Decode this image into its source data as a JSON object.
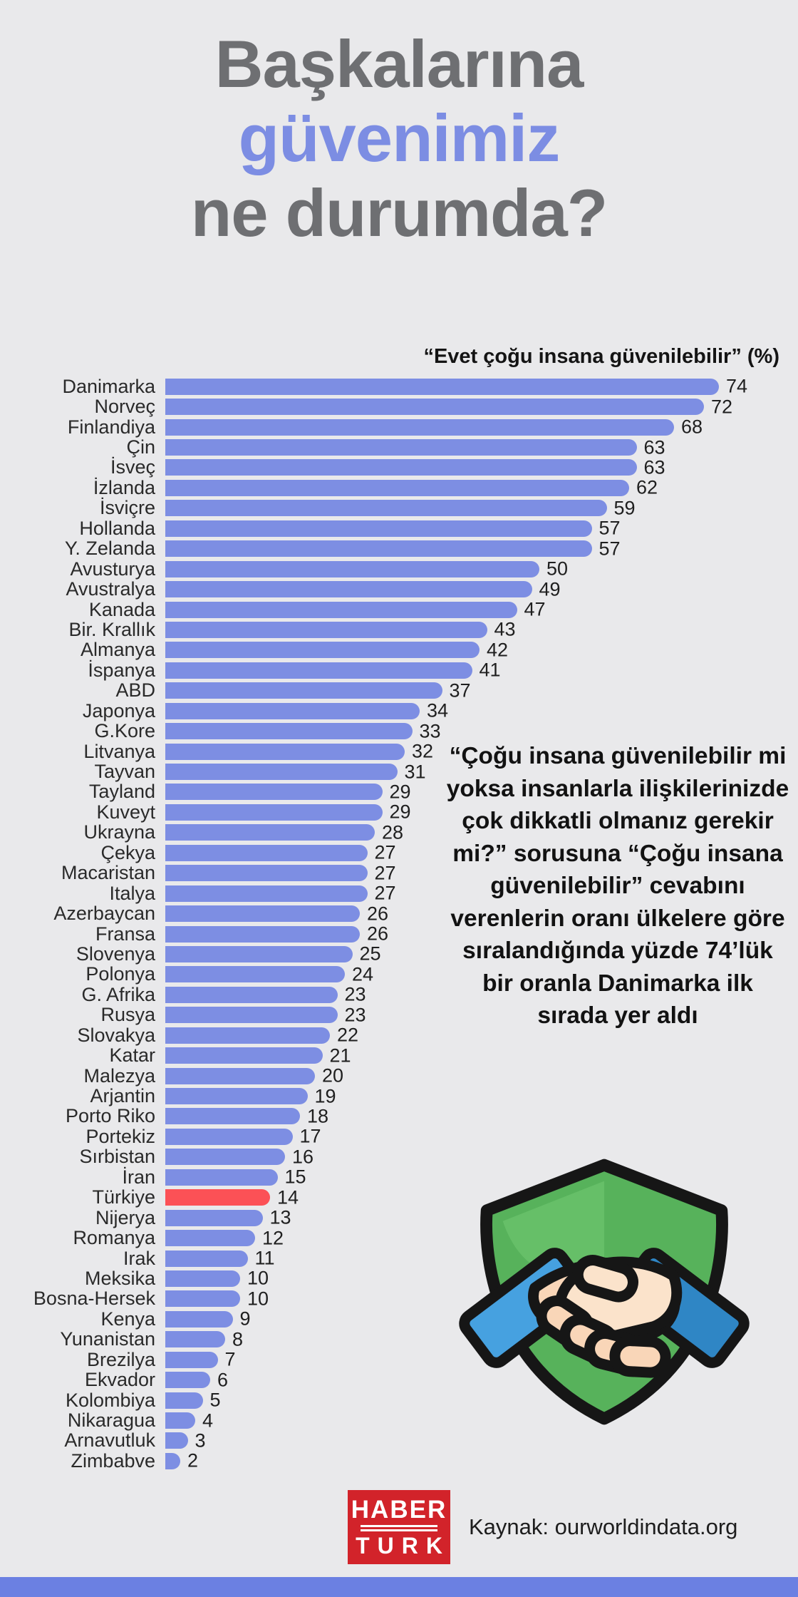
{
  "page": {
    "title_line1": "Başkalarına",
    "title_line2": "güvenimiz",
    "title_line3": "ne durumda?",
    "side_text": "“Çoğu insana güvenilebilir mi yoksa insanlarla ilişkilerinizde çok dikkatli olmanız gerekir mi?” sorusuna “Çoğu insana güvenilebilir” cevabını verenlerin oranı ülkelere göre sıralandığında yüzde 74’lük bir oranla Danimarka ilk sırada yer aldı",
    "source": "Kaynak: ourworldindata.org",
    "logo_line1": "HABER",
    "logo_line2": "TURK",
    "icon": "handshake-shield-icon",
    "colors": {
      "background": "#e9e9eb",
      "title_gray": "#6e6f72",
      "title_blue": "#7c8de3",
      "logo_red": "#d2232a",
      "footer_bar_blue": "#6b80e2"
    }
  },
  "chart_data": {
    "type": "bar",
    "orientation": "horizontal",
    "title": "“Evet çoğu insana güvenilebilir” (%)",
    "xlim": [
      0,
      74
    ],
    "value_labels": true,
    "grid": false,
    "bar_color": "#7d8ee3",
    "highlight": {
      "category": "Türkiye",
      "color": "#fc5156"
    },
    "categories": [
      "Danimarka",
      "Norveç",
      "Finlandiya",
      "Çin",
      "İsveç",
      "İzlanda",
      "İsviçre",
      "Hollanda",
      "Y. Zelanda",
      "Avusturya",
      "Avustralya",
      "Kanada",
      "Bir. Krallık",
      "Almanya",
      "İspanya",
      "ABD",
      "Japonya",
      "G.Kore",
      "Litvanya",
      "Tayvan",
      "Tayland",
      "Kuveyt",
      "Ukrayna",
      "Çekya",
      "Macaristan",
      "Italya",
      "Azerbaycan",
      "Fransa",
      "Slovenya",
      "Polonya",
      "G. Afrika",
      "Rusya",
      "Slovakya",
      "Katar",
      "Malezya",
      "Arjantin",
      "Porto Riko",
      "Portekiz",
      "Sırbistan",
      "İran",
      "Türkiye",
      "Nijerya",
      "Romanya",
      "Irak",
      "Meksika",
      "Bosna-Hersek",
      "Kenya",
      "Yunanistan",
      "Brezilya",
      "Ekvador",
      "Kolombiya",
      "Nikaragua",
      "Arnavutluk",
      "Zimbabve"
    ],
    "values": [
      74,
      72,
      68,
      63,
      63,
      62,
      59,
      57,
      57,
      50,
      49,
      47,
      43,
      42,
      41,
      37,
      34,
      33,
      32,
      31,
      29,
      29,
      28,
      27,
      27,
      27,
      26,
      26,
      25,
      24,
      23,
      23,
      22,
      21,
      20,
      19,
      18,
      17,
      16,
      15,
      14,
      13,
      12,
      11,
      10,
      10,
      9,
      8,
      7,
      6,
      5,
      4,
      3,
      2
    ]
  }
}
